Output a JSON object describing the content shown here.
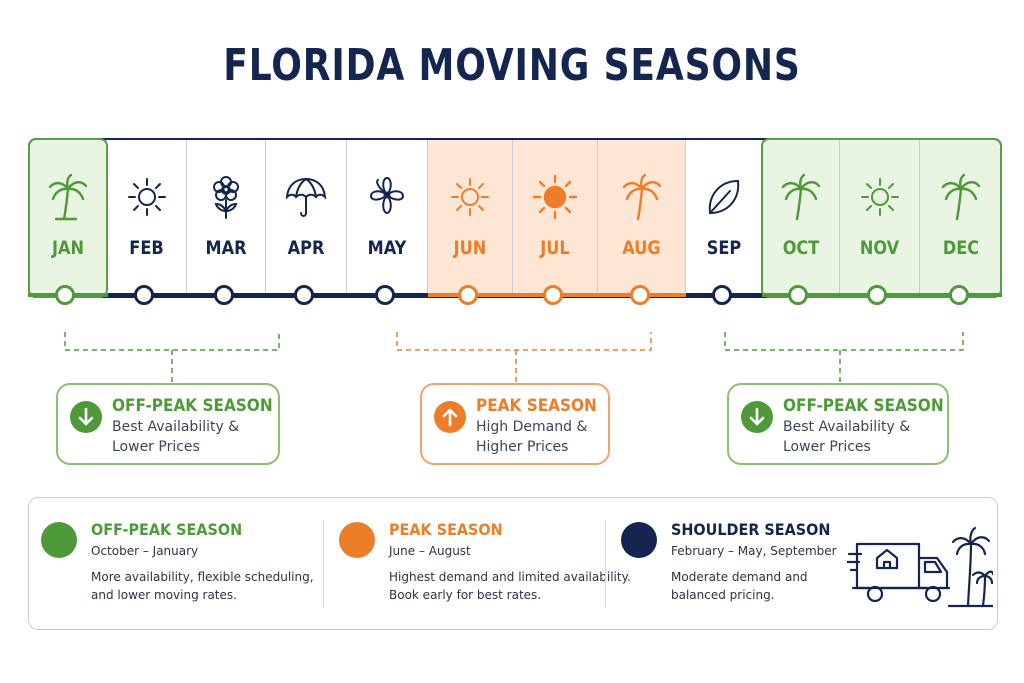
{
  "title": "FLORIDA MOVING SEASONS",
  "months": [
    {
      "label": "JAN",
      "season": "off-peak",
      "icon": "palm-tree-icon"
    },
    {
      "label": "FEB",
      "season": "shoulder",
      "icon": "sun-outline-icon"
    },
    {
      "label": "MAR",
      "season": "shoulder",
      "icon": "flower-icon"
    },
    {
      "label": "APR",
      "season": "shoulder",
      "icon": "umbrella-icon"
    },
    {
      "label": "MAY",
      "season": "shoulder",
      "icon": "hibiscus-icon"
    },
    {
      "label": "JUN",
      "season": "peak",
      "icon": "sun-outline-icon"
    },
    {
      "label": "JUL",
      "season": "peak",
      "icon": "sun-filled-icon"
    },
    {
      "label": "AUG",
      "season": "peak",
      "icon": "palm-tree-icon"
    },
    {
      "label": "SEP",
      "season": "shoulder",
      "icon": "leaf-icon"
    },
    {
      "label": "OCT",
      "season": "off-peak",
      "icon": "palm-tree-icon"
    },
    {
      "label": "NOV",
      "season": "off-peak",
      "icon": "sun-outline-icon"
    },
    {
      "label": "DEC",
      "season": "off-peak",
      "icon": "palm-tree-icon"
    }
  ],
  "callouts": [
    {
      "title": "OFF-PEAK SEASON",
      "line1": "Best Availability &",
      "line2": "Lower Prices",
      "icon": "arrow-down-icon"
    },
    {
      "title": "PEAK SEASON",
      "line1": "High Demand &",
      "line2": "Higher Prices",
      "icon": "arrow-up-icon"
    },
    {
      "title": "OFF-PEAK SEASON",
      "line1": "Best Availability &",
      "line2": "Lower Prices",
      "icon": "arrow-down-icon"
    }
  ],
  "legend": [
    {
      "name": "OFF-PEAK SEASON",
      "range": "October – January",
      "desc1": "More availability, flexible scheduling,",
      "desc2": "and lower moving rates."
    },
    {
      "name": "PEAK SEASON",
      "range": "June – August",
      "desc1": "Highest demand and limited availability.",
      "desc2": "Book early for best rates."
    },
    {
      "name": "SHOULDER SEASON",
      "range": "February – May, September",
      "desc1": "Moderate demand and",
      "desc2": "balanced pricing."
    }
  ],
  "colors": {
    "navy": "#14264f",
    "green": "#4e9a3a",
    "orange": "#ec7d29",
    "green_bg": "#eaf4e2",
    "orange_bg": "#fde6d3"
  },
  "illustration": "moving-truck-with-palm-trees-icon"
}
